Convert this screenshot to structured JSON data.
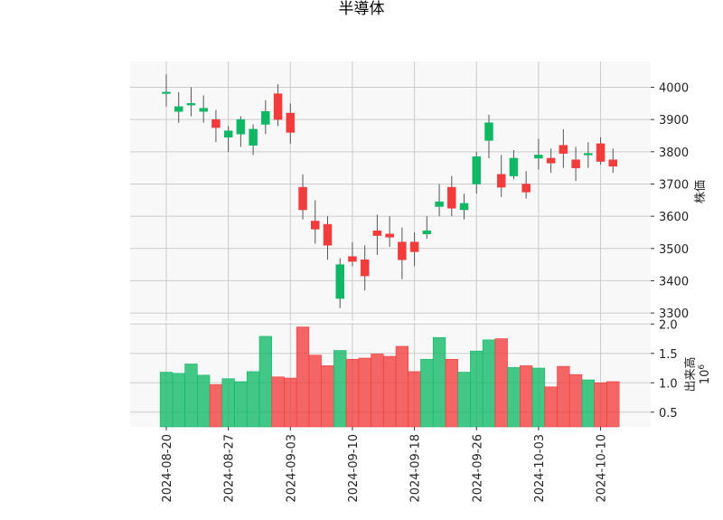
{
  "chart_data": {
    "type": "candlestick",
    "title": "半導体",
    "price_panel": {
      "ylabel": "株価",
      "ylim": [
        3275,
        4080
      ],
      "yticks": [
        3300,
        3400,
        3500,
        3600,
        3700,
        3800,
        3900,
        4000
      ],
      "grid": true
    },
    "volume_panel": {
      "ylabel": "出来高",
      "ylabel_unit": "10^6",
      "ylim": [
        0.25,
        2.02
      ],
      "yticks": [
        0.5,
        1.0,
        1.5,
        2.0
      ],
      "ytick_labels": [
        "0.5",
        "1.0",
        "1.5",
        "2.0"
      ],
      "grid": true
    },
    "x_tick_labels": [
      {
        "index": 0,
        "label": "2024-08-20"
      },
      {
        "index": 5,
        "label": "2024-08-27"
      },
      {
        "index": 10,
        "label": "2024-09-03"
      },
      {
        "index": 15,
        "label": "2024-09-10"
      },
      {
        "index": 20,
        "label": "2024-09-18"
      },
      {
        "index": 25,
        "label": "2024-09-26"
      },
      {
        "index": 30,
        "label": "2024-10-03"
      },
      {
        "index": 35,
        "label": "2024-10-10"
      }
    ],
    "colors": {
      "up": "#10b866",
      "down": "#f23b3b",
      "wick": "#555555",
      "grid": "#cccccc",
      "panel_bg": "#f8f8f8"
    },
    "candles": [
      {
        "open": 3985,
        "high": 4040,
        "low": 3940,
        "close": 3985,
        "volume": 1.18
      },
      {
        "open": 3925,
        "high": 3985,
        "low": 3890,
        "close": 3940,
        "volume": 1.16
      },
      {
        "open": 3945,
        "high": 4000,
        "low": 3910,
        "close": 3950,
        "volume": 1.32
      },
      {
        "open": 3925,
        "high": 3975,
        "low": 3890,
        "close": 3935,
        "volume": 1.13
      },
      {
        "open": 3900,
        "high": 3930,
        "low": 3830,
        "close": 3875,
        "volume": 0.97
      },
      {
        "open": 3845,
        "high": 3880,
        "low": 3800,
        "close": 3865,
        "volume": 1.07
      },
      {
        "open": 3855,
        "high": 3910,
        "low": 3815,
        "close": 3900,
        "volume": 1.02
      },
      {
        "open": 3820,
        "high": 3885,
        "low": 3790,
        "close": 3870,
        "volume": 1.19
      },
      {
        "open": 3885,
        "high": 3960,
        "low": 3855,
        "close": 3925,
        "volume": 1.79
      },
      {
        "open": 3980,
        "high": 4010,
        "low": 3880,
        "close": 3900,
        "volume": 1.1
      },
      {
        "open": 3920,
        "high": 3950,
        "low": 3825,
        "close": 3860,
        "volume": 1.08
      },
      {
        "open": 3690,
        "high": 3730,
        "low": 3590,
        "close": 3620,
        "volume": 1.95
      },
      {
        "open": 3585,
        "high": 3650,
        "low": 3515,
        "close": 3560,
        "volume": 1.47
      },
      {
        "open": 3575,
        "high": 3600,
        "low": 3465,
        "close": 3510,
        "volume": 1.29
      },
      {
        "open": 3345,
        "high": 3470,
        "low": 3315,
        "close": 3450,
        "volume": 1.55
      },
      {
        "open": 3475,
        "high": 3520,
        "low": 3445,
        "close": 3460,
        "volume": 1.4
      },
      {
        "open": 3465,
        "high": 3510,
        "low": 3370,
        "close": 3415,
        "volume": 1.42
      },
      {
        "open": 3555,
        "high": 3605,
        "low": 3480,
        "close": 3540,
        "volume": 1.49
      },
      {
        "open": 3545,
        "high": 3600,
        "low": 3505,
        "close": 3535,
        "volume": 1.45
      },
      {
        "open": 3520,
        "high": 3565,
        "low": 3405,
        "close": 3465,
        "volume": 1.62
      },
      {
        "open": 3520,
        "high": 3550,
        "low": 3445,
        "close": 3490,
        "volume": 1.19
      },
      {
        "open": 3545,
        "high": 3600,
        "low": 3530,
        "close": 3555,
        "volume": 1.4
      },
      {
        "open": 3630,
        "high": 3700,
        "low": 3600,
        "close": 3645,
        "volume": 1.77
      },
      {
        "open": 3690,
        "high": 3725,
        "low": 3600,
        "close": 3625,
        "volume": 1.4
      },
      {
        "open": 3620,
        "high": 3670,
        "low": 3590,
        "close": 3640,
        "volume": 1.18
      },
      {
        "open": 3700,
        "high": 3800,
        "low": 3670,
        "close": 3785,
        "volume": 1.54
      },
      {
        "open": 3835,
        "high": 3915,
        "low": 3780,
        "close": 3890,
        "volume": 1.73
      },
      {
        "open": 3730,
        "high": 3790,
        "low": 3660,
        "close": 3690,
        "volume": 1.75
      },
      {
        "open": 3725,
        "high": 3805,
        "low": 3715,
        "close": 3780,
        "volume": 1.26
      },
      {
        "open": 3700,
        "high": 3740,
        "low": 3655,
        "close": 3675,
        "volume": 1.29
      },
      {
        "open": 3780,
        "high": 3840,
        "low": 3745,
        "close": 3790,
        "volume": 1.25
      },
      {
        "open": 3780,
        "high": 3810,
        "low": 3735,
        "close": 3765,
        "volume": 0.93
      },
      {
        "open": 3820,
        "high": 3870,
        "low": 3750,
        "close": 3795,
        "volume": 1.28
      },
      {
        "open": 3775,
        "high": 3815,
        "low": 3710,
        "close": 3750,
        "volume": 1.14
      },
      {
        "open": 3790,
        "high": 3830,
        "low": 3750,
        "close": 3795,
        "volume": 1.05
      },
      {
        "open": 3825,
        "high": 3845,
        "low": 3760,
        "close": 3770,
        "volume": 1.0
      },
      {
        "open": 3775,
        "high": 3810,
        "low": 3735,
        "close": 3755,
        "volume": 1.02
      }
    ]
  }
}
